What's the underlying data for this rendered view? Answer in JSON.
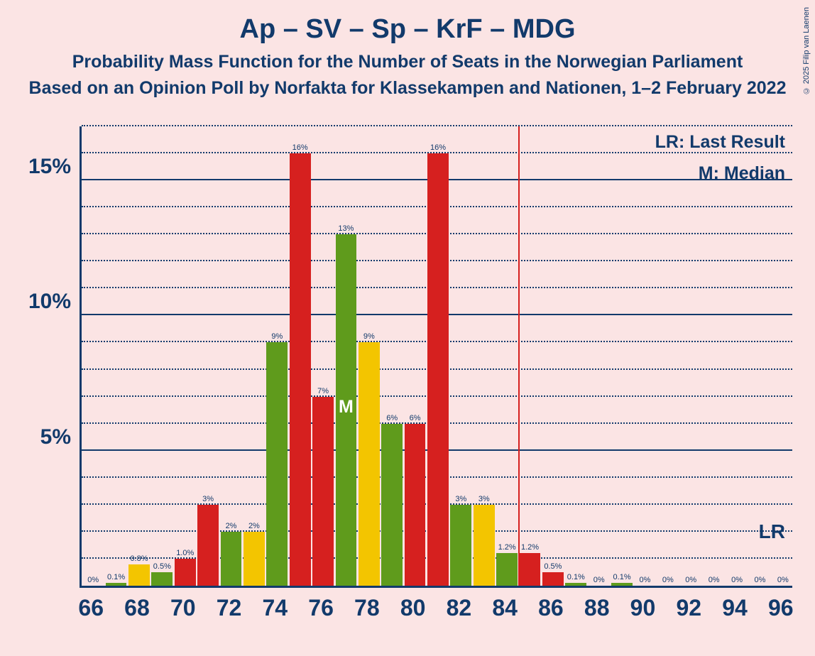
{
  "copyright": "© 2025 Filip van Laenen",
  "titles": {
    "line1": "Ap – SV – Sp – KrF – MDG",
    "line2": "Probability Mass Function for the Number of Seats in the Norwegian Parliament",
    "line3": "Based on an Opinion Poll by Norfakta for Klassekampen and Nationen, 1–2 February 2022"
  },
  "legend": {
    "lr": "LR: Last Result",
    "m": "M: Median",
    "lr_short": "LR"
  },
  "chart": {
    "type": "bar",
    "background_color": "#fbe4e4",
    "axis_color": "#123a6b",
    "grid_major_color": "#123a6b",
    "grid_minor_color": "#123a6b",
    "ylim": [
      0,
      17
    ],
    "y_major_ticks": [
      5,
      10,
      15
    ],
    "y_minor_step": 1,
    "y_tick_labels": {
      "5": "5%",
      "10": "10%",
      "15": "15%"
    },
    "x_min": 65.5,
    "x_max": 96.5,
    "x_tick_start": 66,
    "x_tick_step": 2,
    "x_tick_end": 96,
    "bar_width": 0.92,
    "colors": {
      "green": "#5f9b1c",
      "yellow": "#f3c500",
      "red": "#d6201f"
    },
    "bars": [
      {
        "x": 66,
        "v": 0,
        "c": "green",
        "label": "0%"
      },
      {
        "x": 67,
        "v": 0.1,
        "c": "green",
        "label": "0.1%"
      },
      {
        "x": 68,
        "v": 0.8,
        "c": "yellow",
        "label": "0.8%"
      },
      {
        "x": 69,
        "v": 0.5,
        "c": "green",
        "label": "0.5%"
      },
      {
        "x": 70,
        "v": 1.0,
        "c": "red",
        "label": "1.0%"
      },
      {
        "x": 71,
        "v": 3,
        "c": "red",
        "label": "3%"
      },
      {
        "x": 72,
        "v": 2,
        "c": "green",
        "label": "2%"
      },
      {
        "x": 73,
        "v": 2,
        "c": "yellow",
        "label": "2%"
      },
      {
        "x": 74,
        "v": 9,
        "c": "green",
        "label": "9%"
      },
      {
        "x": 75,
        "v": 16,
        "c": "red",
        "label": "16%"
      },
      {
        "x": 76,
        "v": 7,
        "c": "red",
        "label": "7%"
      },
      {
        "x": 77,
        "v": 13,
        "c": "green",
        "label": "13%"
      },
      {
        "x": 78,
        "v": 9,
        "c": "yellow",
        "label": "9%"
      },
      {
        "x": 79,
        "v": 6,
        "c": "green",
        "label": "6%"
      },
      {
        "x": 80,
        "v": 6,
        "c": "red",
        "label": "6%"
      },
      {
        "x": 81,
        "v": 16,
        "c": "red",
        "label": "16%"
      },
      {
        "x": 82,
        "v": 3,
        "c": "green",
        "label": "3%"
      },
      {
        "x": 83,
        "v": 3,
        "c": "yellow",
        "label": "3%"
      },
      {
        "x": 84,
        "v": 1.2,
        "c": "green",
        "label": "1.2%"
      },
      {
        "x": 85,
        "v": 1.2,
        "c": "red",
        "label": "1.2%"
      },
      {
        "x": 86,
        "v": 0.5,
        "c": "red",
        "label": "0.5%"
      },
      {
        "x": 87,
        "v": 0.1,
        "c": "green",
        "label": "0.1%"
      },
      {
        "x": 88,
        "v": 0,
        "c": "green",
        "label": "0%"
      },
      {
        "x": 89,
        "v": 0.1,
        "c": "green",
        "label": "0.1%"
      },
      {
        "x": 90,
        "v": 0,
        "c": "green",
        "label": "0%"
      },
      {
        "x": 91,
        "v": 0,
        "c": "green",
        "label": "0%"
      },
      {
        "x": 92,
        "v": 0,
        "c": "green",
        "label": "0%"
      },
      {
        "x": 93,
        "v": 0,
        "c": "green",
        "label": "0%"
      },
      {
        "x": 94,
        "v": 0,
        "c": "green",
        "label": "0%"
      },
      {
        "x": 95,
        "v": 0,
        "c": "green",
        "label": "0%"
      },
      {
        "x": 96,
        "v": 0,
        "c": "green",
        "label": "0%"
      }
    ],
    "lr_line_x": 84.5,
    "median_x": 77,
    "median_label": "M"
  }
}
